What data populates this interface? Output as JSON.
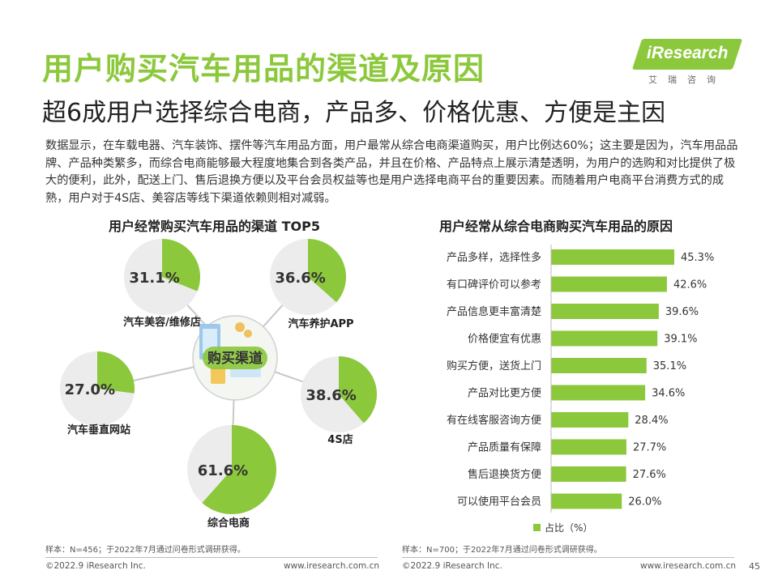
{
  "header": {
    "title": "用户购买汽车用品的渠道及原因",
    "subtitle": "超6成用户选择综合电商，产品多、价格优惠、方便是主因",
    "intro": "数据显示，在车载电器、汽车装饰、摆件等汽车用品方面，用户最常从综合电商渠道购买，用户比例达60%；这主要是因为，汽车用品品牌、产品种类繁多，而综合电商能够最大程度地集合到各类产品，并且在价格、产品特点上展示清楚透明，为用户的选购和对比提供了极大的便利，此外，配送上门、售后退换方便以及平台会员权益等也是用户选择电商平台的重要因素。而随着用户电商平台消费方式的成熟，用户对于4S店、美容店等线下渠道依赖则相对减弱。"
  },
  "logo": {
    "text": "iResearch",
    "cn": "艾瑞咨询"
  },
  "colors": {
    "accent": "#8cc83c",
    "bar": "#8cc83c",
    "pie_rest": "#ececec",
    "spoke": "#c8c8c8"
  },
  "hub": {
    "label": "购买渠道"
  },
  "chart_data": [
    {
      "type": "pie",
      "title": "用户经常购买汽车用品的渠道 TOP5",
      "unit": "%",
      "slices": [
        {
          "label": "汽车美容/维修店",
          "value": 31.1,
          "display": "31.1%"
        },
        {
          "label": "汽车养护APP",
          "value": 36.6,
          "display": "36.6%"
        },
        {
          "label": "汽车垂直网站",
          "value": 27.0,
          "display": "27.0%"
        },
        {
          "label": "4S店",
          "value": 38.6,
          "display": "38.6%"
        },
        {
          "label": "综合电商",
          "value": 61.6,
          "display": "61.6%"
        }
      ],
      "note": "样本：N=456；于2022年7月通过问卷形式调研获得。"
    },
    {
      "type": "bar",
      "orientation": "horizontal",
      "title": "用户经常从综合电商购买汽车用品的原因",
      "legend": "占比（%）",
      "legend_position": "bottom",
      "xlim": [
        0,
        50
      ],
      "categories": [
        "产品多样，选择性多",
        "有口碑评价可以参考",
        "产品信息更丰富清楚",
        "价格便宜有优惠",
        "购买方便，送货上门",
        "产品对比更方便",
        "有在线客服咨询方便",
        "产品质量有保障",
        "售后退换货方便",
        "可以使用平台会员"
      ],
      "values": [
        45.3,
        42.6,
        39.6,
        39.1,
        35.1,
        34.6,
        28.4,
        27.7,
        27.6,
        26.0
      ],
      "labels": [
        "45.3%",
        "42.6%",
        "39.6%",
        "39.1%",
        "35.1%",
        "34.6%",
        "28.4%",
        "27.7%",
        "27.6%",
        "26.0%"
      ],
      "note": "样本：N=700；于2022年7月通过问卷形式调研获得。"
    }
  ],
  "footer": {
    "left_copyright": "©2022.9 iResearch Inc.",
    "left_url": "www.iresearch.com.cn",
    "right_copyright": "©2022.9 iResearch Inc.",
    "right_url": "www.iresearch.com.cn",
    "page": "45"
  }
}
